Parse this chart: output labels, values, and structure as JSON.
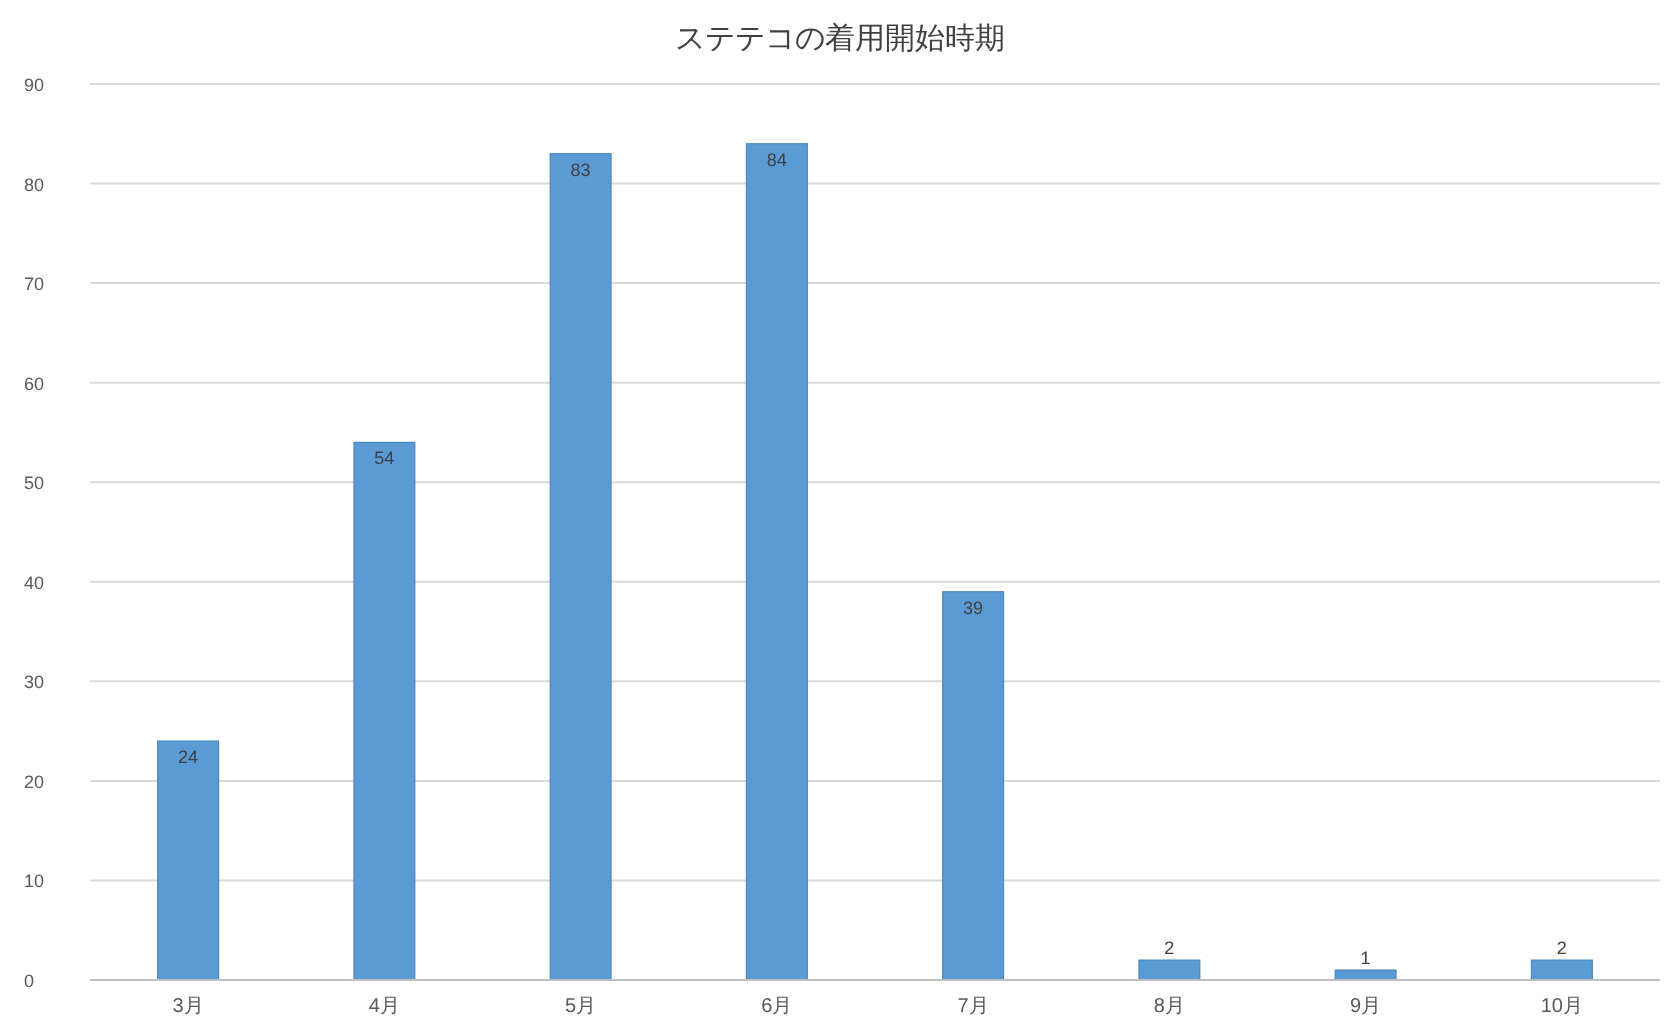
{
  "chart_data": {
    "type": "bar",
    "title": "ステテコの着用開始時期",
    "categories": [
      "3月",
      "4月",
      "5月",
      "6月",
      "7月",
      "8月",
      "9月",
      "10月"
    ],
    "values": [
      24,
      54,
      83,
      84,
      39,
      2,
      1,
      2
    ],
    "color": "#5b9bd5",
    "ylim": [
      0,
      90
    ],
    "yticks": [
      0,
      10,
      20,
      30,
      40,
      50,
      60,
      70,
      80,
      90
    ],
    "grid": "y",
    "data_labels": true
  }
}
